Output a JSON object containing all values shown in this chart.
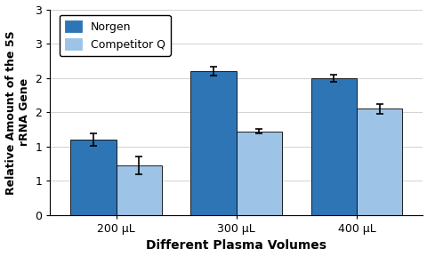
{
  "categories": [
    "200 μL",
    "300 μL",
    "400 μL"
  ],
  "norgen_values": [
    1.1,
    2.1,
    2.0
  ],
  "competitor_values": [
    0.72,
    1.22,
    1.55
  ],
  "norgen_errors": [
    0.09,
    0.06,
    0.05
  ],
  "competitor_errors": [
    0.13,
    0.03,
    0.07
  ],
  "norgen_color": "#2E75B6",
  "competitor_color": "#9DC3E6",
  "bar_width": 0.38,
  "ylim": [
    0,
    3
  ],
  "yticks": [
    0,
    0.5,
    1.0,
    1.5,
    2.0,
    2.5,
    3.0
  ],
  "ytick_labels": [
    "0",
    "1",
    "1",
    "2",
    "2",
    "3",
    "3"
  ],
  "xlabel": "Different Plasma Volumes",
  "ylabel": "Relative Amount of the 5S\nrRNA Gene",
  "legend_labels": [
    "Norgen",
    "Competitor Q"
  ],
  "plot_bg_color": "#FFFFFF",
  "fig_bg_color": "#FFFFFF",
  "xlabel_fontsize": 10,
  "ylabel_fontsize": 9,
  "tick_fontsize": 9,
  "legend_fontsize": 9
}
